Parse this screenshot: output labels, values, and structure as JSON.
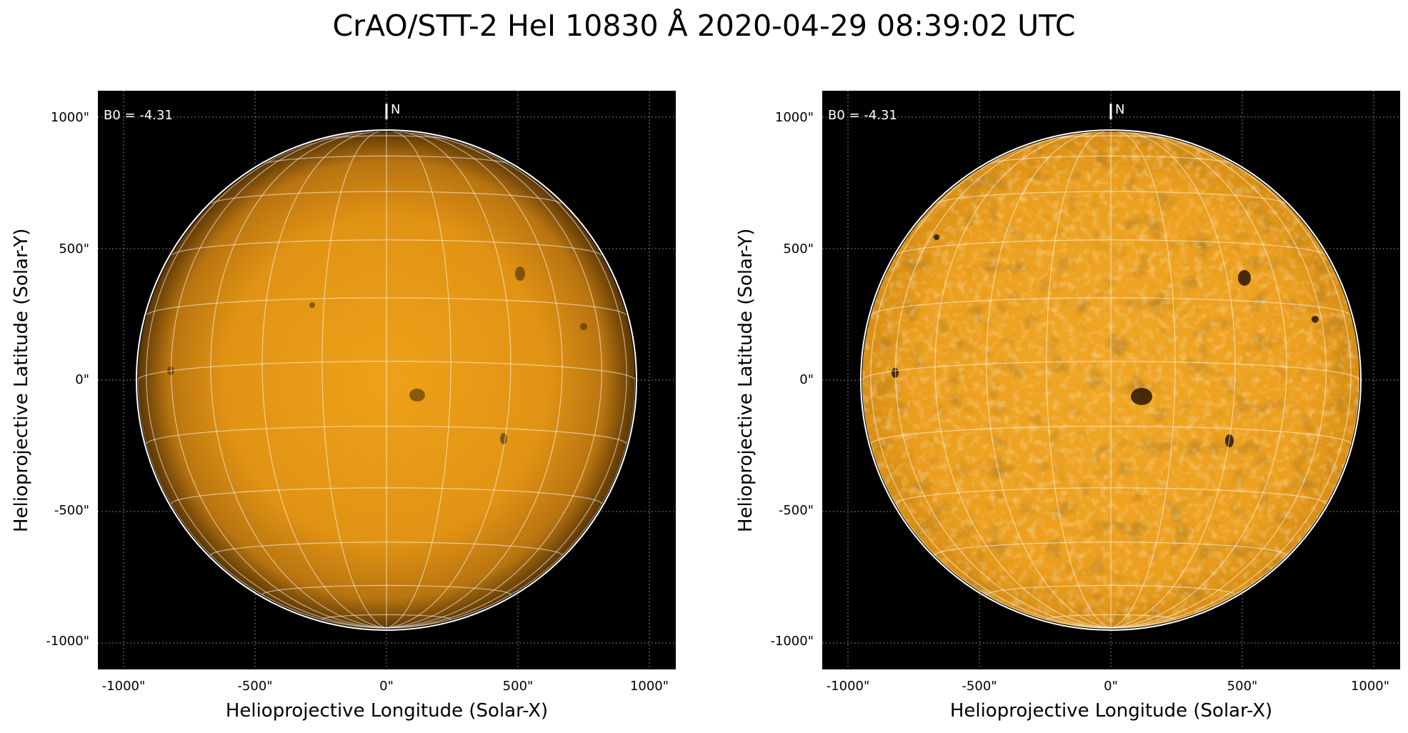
{
  "title": "CrAO/STT-2 HeI 10830 Å 2020-04-29 08:39:02 UTC",
  "colors": {
    "background": "#000000",
    "disk_center": "#e89a12",
    "disk_edge": "#7a4a05",
    "grid": "#ffffff"
  },
  "panels": [
    {
      "variant": "raw",
      "b0_label": "B0 = -4.31",
      "north_label": "N",
      "xlabel": "Helioprojective Longitude (Solar-X)",
      "ylabel": "Helioprojective Latitude (Solar-Y)",
      "xticks": [
        "-1000\"",
        "-500\"",
        "0\"",
        "500\"",
        "1000\""
      ],
      "yticks": [
        "1000\"",
        "500\"",
        "0\"",
        "-500\"",
        "-1000\""
      ]
    },
    {
      "variant": "enhanced",
      "b0_label": "B0 = -4.31",
      "north_label": "N",
      "xlabel": "Helioprojective Longitude (Solar-X)",
      "ylabel": "Helioprojective Latitude (Solar-Y)",
      "xticks": [
        "-1000\"",
        "-500\"",
        "0\"",
        "500\"",
        "1000\""
      ],
      "yticks": [
        "1000\"",
        "500\"",
        "0\"",
        "-500\"",
        "-1000\""
      ]
    }
  ]
}
